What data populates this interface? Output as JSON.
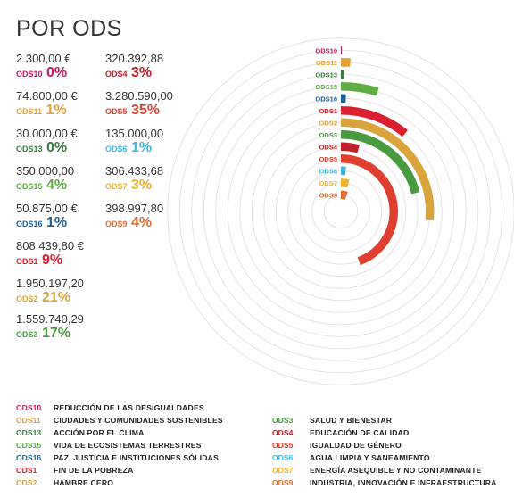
{
  "title": "POR ODS",
  "colors": {
    "ODS10": "#C8175E",
    "ODS11": "#E6A13A",
    "ODS13": "#3B7A3F",
    "ODS15": "#5FAE42",
    "ODS16": "#1D5E93",
    "ODS1": "#DB1F2E",
    "ODS2": "#D9A43C",
    "ODS3": "#4A9A40",
    "ODS4": "#C0212C",
    "ODS5": "#DE3F2E",
    "ODS6": "#41B6E4",
    "ODS7": "#F0B32F",
    "ODS9": "#E06C36"
  },
  "figures": [
    {
      "code": "ODS10",
      "amount": "2.300,00 €",
      "pct": "0%"
    },
    {
      "code": "ODS11",
      "amount": "74.800,00 €",
      "pct": "1%"
    },
    {
      "code": "ODS13",
      "amount": "30.000,00 €",
      "pct": "0%"
    },
    {
      "code": "ODS15",
      "amount": "350.000,00",
      "pct": "4%"
    },
    {
      "code": "ODS16",
      "amount": "50.875,00 €",
      "pct": "1%"
    },
    {
      "code": "ODS1",
      "amount": "808.439,80 €",
      "pct": "9%"
    },
    {
      "code": "ODS2",
      "amount": "1.950.197,20",
      "pct": "21%"
    },
    {
      "code": "ODS3",
      "amount": "1.559.740,29",
      "pct": "17%"
    },
    {
      "code": "ODS4",
      "amount": "320.392,88",
      "pct": "3%"
    },
    {
      "code": "ODS5",
      "amount": "3.280.590,00",
      "pct": "35%"
    },
    {
      "code": "ODS6",
      "amount": "135.000,00",
      "pct": "1%"
    },
    {
      "code": "ODS7",
      "amount": "306.433,68",
      "pct": "3%"
    },
    {
      "code": "ODS9",
      "amount": "398.997,80",
      "pct": "4%"
    }
  ],
  "chart_data": {
    "type": "radial-bar",
    "title": "POR ODS",
    "categories": [
      "ODS10",
      "ODS11",
      "ODS13",
      "ODS15",
      "ODS16",
      "ODS1",
      "ODS2",
      "ODS3",
      "ODS4",
      "ODS5",
      "ODS6",
      "ODS7",
      "ODS9"
    ],
    "values": [
      2300.0,
      74800.0,
      30000.0,
      350000.0,
      50875.0,
      808439.8,
      1950197.2,
      1559740.29,
      320392.88,
      3280590.0,
      135000.0,
      306433.68,
      398997.8
    ],
    "percentages": [
      0,
      1,
      0,
      4,
      1,
      9,
      21,
      17,
      3,
      35,
      1,
      3,
      4
    ],
    "grid": true
  },
  "legend": [
    {
      "code": "ODS10",
      "name": "REDUCCIÓN DE LAS DESIGUALDADES"
    },
    {
      "code": "ODS11",
      "name": "CIUDADES Y COMUNIDADES SOSTENIBLES"
    },
    {
      "code": "ODS13",
      "name": "ACCIÓN POR EL CLIMA"
    },
    {
      "code": "ODS15",
      "name": "VIDA DE ECOSISTEMAS TERRESTRES"
    },
    {
      "code": "ODS16",
      "name": "PAZ, JUSTICIA E INSTITUCIONES SÓLIDAS"
    },
    {
      "code": "ODS1",
      "name": "FIN DE LA POBREZA"
    },
    {
      "code": "ODS2",
      "name": "HAMBRE CERO"
    },
    {
      "code": "ODS3",
      "name": "SALUD Y BIENESTAR"
    },
    {
      "code": "ODS4",
      "name": "EDUCACIÓN DE CALIDAD"
    },
    {
      "code": "ODS5",
      "name": "IGUALDAD DE GÉNERO"
    },
    {
      "code": "ODS6",
      "name": "AGUA LIMPIA Y SANEAMIENTO"
    },
    {
      "code": "ODS7",
      "name": "ENERGÍA ASEQUIBLE Y NO CONTAMINANTE"
    },
    {
      "code": "ODS9",
      "name": "INDUSTRIA, INNOVACIÓN E INFRAESTRUCTURA"
    }
  ]
}
